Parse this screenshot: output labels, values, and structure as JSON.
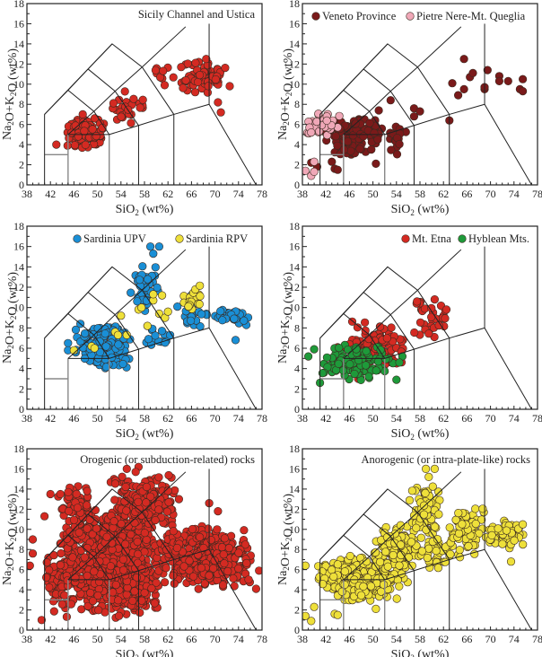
{
  "figure": {
    "description": "Total alkali vs silica (TAS) diagrams, six panels"
  },
  "chart_data": [
    {
      "type": "scatter",
      "title": "Sicily Channel and Ustica",
      "xlabel": "SiO2 (wt%)",
      "ylabel": "Na2O+K2O (wt%)",
      "xlim": [
        38,
        78
      ],
      "ylim": [
        0,
        18
      ],
      "xticks": [
        38,
        42,
        46,
        50,
        54,
        58,
        62,
        66,
        70,
        74,
        78
      ],
      "yticks": [
        0,
        2,
        4,
        6,
        8,
        10,
        12,
        14,
        16,
        18
      ],
      "legend_position": "top-right",
      "series": [
        {
          "name": "Sicily Channel and Ustica",
          "color": "#d42a22",
          "show_in_legend": false,
          "clusters": [
            {
              "x": [
                44,
                52
              ],
              "y": [
                3.5,
                6.8
              ],
              "n": 110
            },
            {
              "x": [
                52,
                59
              ],
              "y": [
                5.5,
                9.5
              ],
              "n": 30
            },
            {
              "x": [
                59,
                63
              ],
              "y": [
                9.5,
                12
              ],
              "n": 10
            },
            {
              "x": [
                64,
                72
              ],
              "y": [
                9,
                12.5
              ],
              "n": 80
            }
          ],
          "points": [
            [
              43,
              4.0
            ],
            [
              47.5,
              7.0
            ],
            [
              70.5,
              8.2
            ],
            [
              71,
              7.2
            ],
            [
              72.5,
              9.8
            ],
            [
              68.5,
              12.5
            ]
          ]
        }
      ]
    },
    {
      "type": "scatter",
      "title": "",
      "xlabel": "SiO2 (wt%)",
      "ylabel": "Na2O+K2O (wt%)",
      "xlim": [
        38,
        78
      ],
      "ylim": [
        0,
        18
      ],
      "xticks": [
        38,
        42,
        46,
        50,
        54,
        58,
        62,
        66,
        70,
        74,
        78
      ],
      "yticks": [
        0,
        2,
        4,
        6,
        8,
        10,
        12,
        14,
        16,
        18
      ],
      "legend_position": "top",
      "series": [
        {
          "name": "Veneto Province",
          "color": "#7a1a1a",
          "clusters": [
            {
              "x": [
                41,
                52
              ],
              "y": [
                2.8,
                7.0
              ],
              "n": 130
            },
            {
              "x": [
                52,
                56
              ],
              "y": [
                3,
                6.2
              ],
              "n": 20
            }
          ],
          "points": [
            [
              39.5,
              2.2
            ],
            [
              40.5,
              1.8
            ],
            [
              43,
              2.3
            ],
            [
              43.5,
              1.6
            ],
            [
              44,
              1.5
            ],
            [
              50.5,
              2.1
            ],
            [
              51,
              7.4
            ],
            [
              53,
              8.4
            ],
            [
              57,
              7.6
            ],
            [
              57,
              6.8
            ],
            [
              58,
              7.3
            ],
            [
              63,
              6.4
            ],
            [
              63.5,
              10.1
            ],
            [
              64.5,
              8.9
            ],
            [
              65.5,
              9.5
            ],
            [
              65.5,
              12.5
            ],
            [
              66.5,
              10.7
            ],
            [
              67,
              11.1
            ],
            [
              69,
              9.5
            ],
            [
              69,
              9.7
            ],
            [
              69.5,
              11.4
            ],
            [
              71.5,
              10.8
            ],
            [
              71.5,
              10.3
            ],
            [
              73,
              10.3
            ],
            [
              75,
              9.5
            ],
            [
              75.5,
              9.3
            ],
            [
              75.5,
              10.5
            ]
          ]
        },
        {
          "name": "Pietre Nere-Mt. Queglia",
          "color": "#f0a8b8",
          "clusters": [
            {
              "x": [
                38,
                45
              ],
              "y": [
                4.8,
                7.2
              ],
              "n": 35
            }
          ],
          "points": [
            [
              38.5,
              1.4
            ],
            [
              39.5,
              0.9
            ],
            [
              40,
              1.3
            ],
            [
              40,
              2.3
            ],
            [
              39.5,
              5.2
            ]
          ]
        }
      ]
    },
    {
      "type": "scatter",
      "title": "",
      "xlabel": "SiO2 (wt%)",
      "ylabel": "Na2O+K2O (wt%)",
      "xlim": [
        38,
        78
      ],
      "ylim": [
        0,
        18
      ],
      "xticks": [
        38,
        42,
        46,
        50,
        54,
        58,
        62,
        66,
        70,
        74,
        78
      ],
      "yticks": [
        0,
        2,
        4,
        6,
        8,
        10,
        12,
        14,
        16,
        18
      ],
      "legend_position": "top",
      "series": [
        {
          "name": "Sardinia UPV",
          "color": "#1a8fd6",
          "clusters": [
            {
              "x": [
                46,
                56
              ],
              "y": [
                3.8,
                8.5
              ],
              "n": 170
            },
            {
              "x": [
                55,
                61
              ],
              "y": [
                9,
                14.5
              ],
              "n": 45
            },
            {
              "x": [
                57,
                63
              ],
              "y": [
                5.8,
                8
              ],
              "n": 15
            },
            {
              "x": [
                63,
                69
              ],
              "y": [
                7,
                11.5
              ],
              "n": 25
            },
            {
              "x": [
                69,
                76
              ],
              "y": [
                8,
                10
              ],
              "n": 35
            }
          ],
          "points": [
            [
              45,
              6.5
            ],
            [
              45,
              5.8
            ],
            [
              59,
              16.0
            ],
            [
              60.5,
              16.0
            ],
            [
              59.5,
              15.3
            ],
            [
              73.5,
              6.8
            ]
          ]
        },
        {
          "name": "Sardinia RPV",
          "color": "#eee03a",
          "clusters": [
            {
              "x": [
                64.5,
                68
              ],
              "y": [
                9.3,
                12.5
              ],
              "n": 20
            }
          ],
          "points": [
            [
              46,
              5.8
            ],
            [
              49,
              6.2
            ],
            [
              49.5,
              6.0
            ],
            [
              53,
              7.6
            ],
            [
              53.5,
              7.3
            ],
            [
              55,
              7.3
            ],
            [
              54,
              9.2
            ],
            [
              57,
              9.8
            ],
            [
              57.5,
              10.0
            ],
            [
              58.5,
              8.2
            ],
            [
              59.5,
              10.7
            ],
            [
              59.5,
              11.3
            ],
            [
              61,
              11.2
            ],
            [
              60.5,
              9.4
            ],
            [
              61.5,
              9.0
            ],
            [
              62,
              9.6
            ]
          ]
        }
      ]
    },
    {
      "type": "scatter",
      "title": "",
      "xlabel": "SiO2 (wt%)",
      "ylabel": "Na2O+K2O (wt%)",
      "xlim": [
        38,
        78
      ],
      "ylim": [
        0,
        18
      ],
      "xticks": [
        38,
        42,
        46,
        50,
        54,
        58,
        62,
        66,
        70,
        74,
        78
      ],
      "yticks": [
        0,
        2,
        4,
        6,
        8,
        10,
        12,
        14,
        16,
        18
      ],
      "legend_position": "top-right",
      "series": [
        {
          "name": "Mt. Etna",
          "color": "#d42a22",
          "clusters": [
            {
              "x": [
                45,
                56
              ],
              "y": [
                3.5,
                9
              ],
              "n": 110
            },
            {
              "x": [
                56,
                63.5
              ],
              "y": [
                6.8,
                10.8
              ],
              "n": 30
            }
          ],
          "points": [
            [
              44,
              6.1
            ],
            [
              46,
              6.4
            ],
            [
              47.5,
              3.0
            ],
            [
              57.5,
              10.6
            ],
            [
              60.5,
              10.8
            ],
            [
              62.5,
              9.8
            ]
          ]
        },
        {
          "name": "Hyblean Mts.",
          "color": "#1e9a3a",
          "clusters": [
            {
              "x": [
                41,
                54
              ],
              "y": [
                2.6,
                6.5
              ],
              "n": 120
            }
          ],
          "points": [
            [
              39,
              5.2
            ],
            [
              40,
              5.9
            ],
            [
              41,
              2.6
            ],
            [
              55,
              5.2
            ],
            [
              54.5,
              4.6
            ],
            [
              54,
              2.9
            ]
          ]
        }
      ]
    },
    {
      "type": "scatter",
      "title": "Orogenic (or subduction-related) rocks",
      "xlabel": "SiO2 (wt%)",
      "ylabel": "Na2O+K2O (wt%)",
      "xlim": [
        38,
        78
      ],
      "ylim": [
        0,
        18
      ],
      "xticks": [
        38,
        42,
        46,
        50,
        54,
        58,
        62,
        66,
        70,
        74,
        78
      ],
      "yticks": [
        0,
        2,
        4,
        6,
        8,
        10,
        12,
        14,
        16,
        18
      ],
      "legend_position": "top-right",
      "series": [
        {
          "name": "Orogenic (or subduction-related) rocks",
          "color": "#d42a22",
          "show_in_legend": false,
          "clusters": [
            {
              "x": [
                44,
                62
              ],
              "y": [
                1,
                12.5
              ],
              "n": 900
            },
            {
              "x": [
                52,
                64
              ],
              "y": [
                10,
                15.5
              ],
              "n": 200
            },
            {
              "x": [
                60,
                77
              ],
              "y": [
                4,
                10.5
              ],
              "n": 400
            },
            {
              "x": [
                41,
                47
              ],
              "y": [
                1,
                10
              ],
              "n": 80
            },
            {
              "x": [
                43,
                50
              ],
              "y": [
                10,
                14.5
              ],
              "n": 60
            }
          ],
          "points": [
            [
              38.5,
              6.4
            ],
            [
              39,
              9.0
            ],
            [
              39,
              7.6
            ],
            [
              40.5,
              1.0
            ],
            [
              41,
              11.3
            ],
            [
              42,
              13.5
            ],
            [
              55,
              16.0
            ],
            [
              57,
              16.2
            ],
            [
              56.5,
              15.7
            ],
            [
              69,
              12.6
            ],
            [
              70.5,
              11.8
            ],
            [
              77.5,
              5.9
            ],
            [
              77,
              4.1
            ]
          ]
        }
      ]
    },
    {
      "type": "scatter",
      "title": "Anorogenic (or intra-plate-like) rocks",
      "xlabel": "SiO2 (wt%)",
      "ylabel": "Na2O+K2O (wt%)",
      "xlim": [
        38,
        78
      ],
      "ylim": [
        0,
        18
      ],
      "xticks": [
        38,
        42,
        46,
        50,
        54,
        58,
        62,
        66,
        70,
        74,
        78
      ],
      "yticks": [
        0,
        2,
        4,
        6,
        8,
        10,
        12,
        14,
        16,
        18
      ],
      "legend_position": "top-right",
      "series": [
        {
          "name": "Anorogenic (or intra-plate-like) rocks",
          "color": "#eee03a",
          "show_in_legend": false,
          "clusters": [
            {
              "x": [
                40,
                56
              ],
              "y": [
                2.8,
                7.5
              ],
              "n": 350
            },
            {
              "x": [
                50,
                58
              ],
              "y": [
                6,
                10.5
              ],
              "n": 120
            },
            {
              "x": [
                56,
                62
              ],
              "y": [
                9,
                14.5
              ],
              "n": 70
            },
            {
              "x": [
                57,
                64
              ],
              "y": [
                5.8,
                9.5
              ],
              "n": 40
            },
            {
              "x": [
                63,
                69
              ],
              "y": [
                7,
                12.5
              ],
              "n": 90
            },
            {
              "x": [
                69,
                76
              ],
              "y": [
                8,
                11
              ],
              "n": 70
            }
          ],
          "points": [
            [
              38.5,
              6.4
            ],
            [
              38.5,
              1.4
            ],
            [
              39.5,
              0.9
            ],
            [
              40,
              2.3
            ],
            [
              43.5,
              1.6
            ],
            [
              44,
              1.5
            ],
            [
              50.5,
              2.1
            ],
            [
              59,
              16.0
            ],
            [
              60.5,
              16.0
            ],
            [
              59.5,
              15.2
            ],
            [
              73.5,
              6.8
            ],
            [
              75.5,
              10.5
            ]
          ]
        }
      ]
    }
  ],
  "tas_fields": {
    "black_lines": [
      [
        [
          41,
          0
        ],
        [
          41,
          7
        ],
        [
          52.5,
          14
        ],
        [
          57.6,
          11.7
        ],
        [
          63,
          7
        ],
        [
          63,
          0
        ]
      ],
      [
        [
          41,
          7
        ],
        [
          45,
          9.4
        ],
        [
          48.4,
          11.5
        ],
        [
          52.5,
          14
        ]
      ],
      [
        [
          45,
          9.4
        ],
        [
          49.4,
          7.3
        ],
        [
          52,
          5
        ]
      ],
      [
        [
          48.4,
          11.5
        ],
        [
          53,
          9.3
        ],
        [
          57,
          5.9
        ]
      ],
      [
        [
          45,
          5
        ],
        [
          52,
          5
        ],
        [
          57,
          5.9
        ],
        [
          63,
          7
        ],
        [
          69,
          8
        ],
        [
          77,
          0
        ]
      ],
      [
        [
          45,
          5
        ],
        [
          49.4,
          7.3
        ],
        [
          53,
          9.3
        ],
        [
          57.6,
          11.7
        ],
        [
          65,
          15.7
        ]
      ],
      [
        [
          57,
          0
        ],
        [
          57,
          5.9
        ]
      ],
      [
        [
          69,
          8
        ],
        [
          69,
          16
        ]
      ]
    ],
    "grey_lines": [
      [
        [
          41,
          3
        ],
        [
          45,
          3
        ],
        [
          45,
          0
        ]
      ],
      [
        [
          45,
          3
        ],
        [
          45,
          5
        ]
      ],
      [
        [
          52,
          0
        ],
        [
          52,
          5
        ]
      ]
    ]
  }
}
